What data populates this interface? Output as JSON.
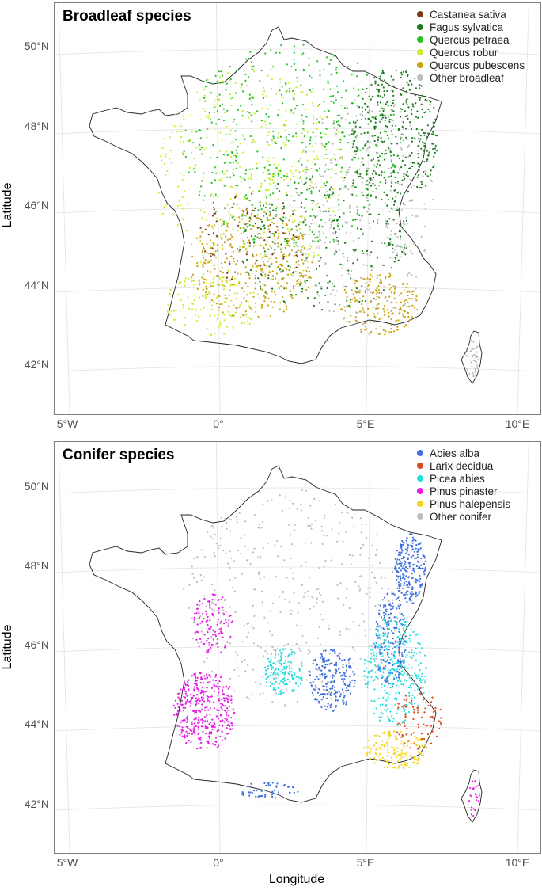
{
  "axes": {
    "ylabel": "Latitude",
    "xlabel": "Longitude",
    "lat_ticks": [
      "50°N",
      "48°N",
      "46°N",
      "44°N",
      "42°N"
    ],
    "lon_ticks": [
      "5°W",
      "0°",
      "5°E",
      "10°E"
    ]
  },
  "panels": [
    {
      "title": "Broadleaf species",
      "legend": [
        {
          "label": "Castanea sativa",
          "color": "#7b3a14"
        },
        {
          "label": "Fagus sylvatica",
          "color": "#1e7b1e"
        },
        {
          "label": "Quercus petraea",
          "color": "#22c322"
        },
        {
          "label": "Quercus robur",
          "color": "#c8ef2e"
        },
        {
          "label": "Quercus pubescens",
          "color": "#c9a40e"
        },
        {
          "label": "Other broadleaf",
          "color": "#bdbdbd"
        }
      ]
    },
    {
      "title": "Conifer species",
      "legend": [
        {
          "label": "Abies alba",
          "color": "#3f6fe0"
        },
        {
          "label": "Larix decidua",
          "color": "#e0491c"
        },
        {
          "label": "Picea abies",
          "color": "#22dede"
        },
        {
          "label": "Pinus pinaster",
          "color": "#e61be6"
        },
        {
          "label": "Pinus halepensis",
          "color": "#f5d31b"
        },
        {
          "label": "Other conifer",
          "color": "#bdbdbd"
        }
      ]
    }
  ]
}
